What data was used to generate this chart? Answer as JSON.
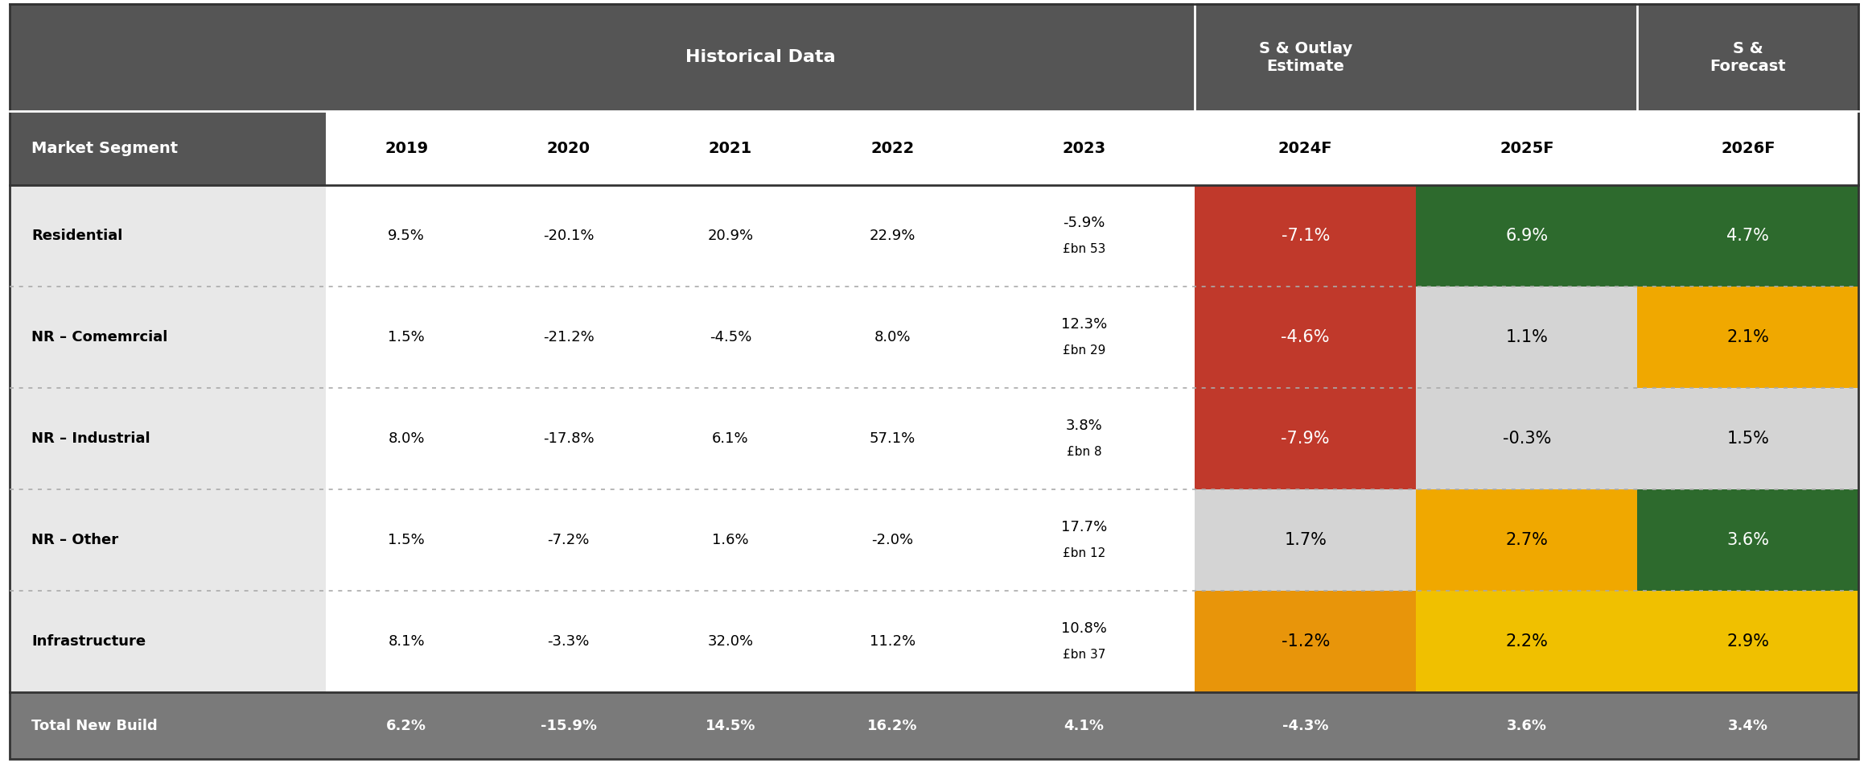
{
  "columns": [
    "Market Segment",
    "2019",
    "2020",
    "2021",
    "2022",
    "2023",
    "2024F",
    "2025F",
    "2026F"
  ],
  "rows": [
    {
      "label": "Residential",
      "values": [
        "9.5%",
        "-20.1%",
        "20.9%",
        "22.9%",
        "-5.9%\n£bn 53",
        "-7.1%",
        "6.9%",
        "4.7%"
      ],
      "colors": [
        "white",
        "white",
        "white",
        "white",
        "white",
        "#c0392b",
        "#2d6a2d",
        "#2d6a2d"
      ]
    },
    {
      "label": "NR – Comemrcial",
      "values": [
        "1.5%",
        "-21.2%",
        "-4.5%",
        "8.0%",
        "12.3%\n£bn 29",
        "-4.6%",
        "1.1%",
        "2.1%"
      ],
      "colors": [
        "white",
        "white",
        "white",
        "white",
        "white",
        "#c0392b",
        "#d4d4d4",
        "#f0a800"
      ]
    },
    {
      "label": "NR – Industrial",
      "values": [
        "8.0%",
        "-17.8%",
        "6.1%",
        "57.1%",
        "3.8%\n£bn 8",
        "-7.9%",
        "-0.3%",
        "1.5%"
      ],
      "colors": [
        "white",
        "white",
        "white",
        "white",
        "white",
        "#c0392b",
        "#d4d4d4",
        "#d4d4d4"
      ]
    },
    {
      "label": "NR – Other",
      "values": [
        "1.5%",
        "-7.2%",
        "1.6%",
        "-2.0%",
        "17.7%\n£bn 12",
        "1.7%",
        "2.7%",
        "3.6%"
      ],
      "colors": [
        "white",
        "white",
        "white",
        "white",
        "white",
        "#d4d4d4",
        "#f0a800",
        "#2d6a2d"
      ]
    },
    {
      "label": "Infrastructure",
      "values": [
        "8.1%",
        "-3.3%",
        "32.0%",
        "11.2%",
        "10.8%\n£bn 37",
        "-1.2%",
        "2.2%",
        "2.9%"
      ],
      "colors": [
        "white",
        "white",
        "white",
        "white",
        "white",
        "#e8950a",
        "#f0c000",
        "#f0c000"
      ]
    }
  ],
  "total_row": {
    "label": "Total New Build",
    "values": [
      "6.2%",
      "-15.9%",
      "14.5%",
      "16.2%",
      "4.1%",
      "-4.3%",
      "3.6%",
      "3.4%"
    ]
  },
  "header_bg": "#555555",
  "total_bg": "#7a7a7a",
  "row_label_bg": "#e8e8e8",
  "text_colors": {
    "white": "black",
    "#c0392b": "white",
    "#2d6a2d": "white",
    "#f0a800": "black",
    "#f0c000": "black",
    "#d4d4d4": "black",
    "#e8950a": "black"
  }
}
